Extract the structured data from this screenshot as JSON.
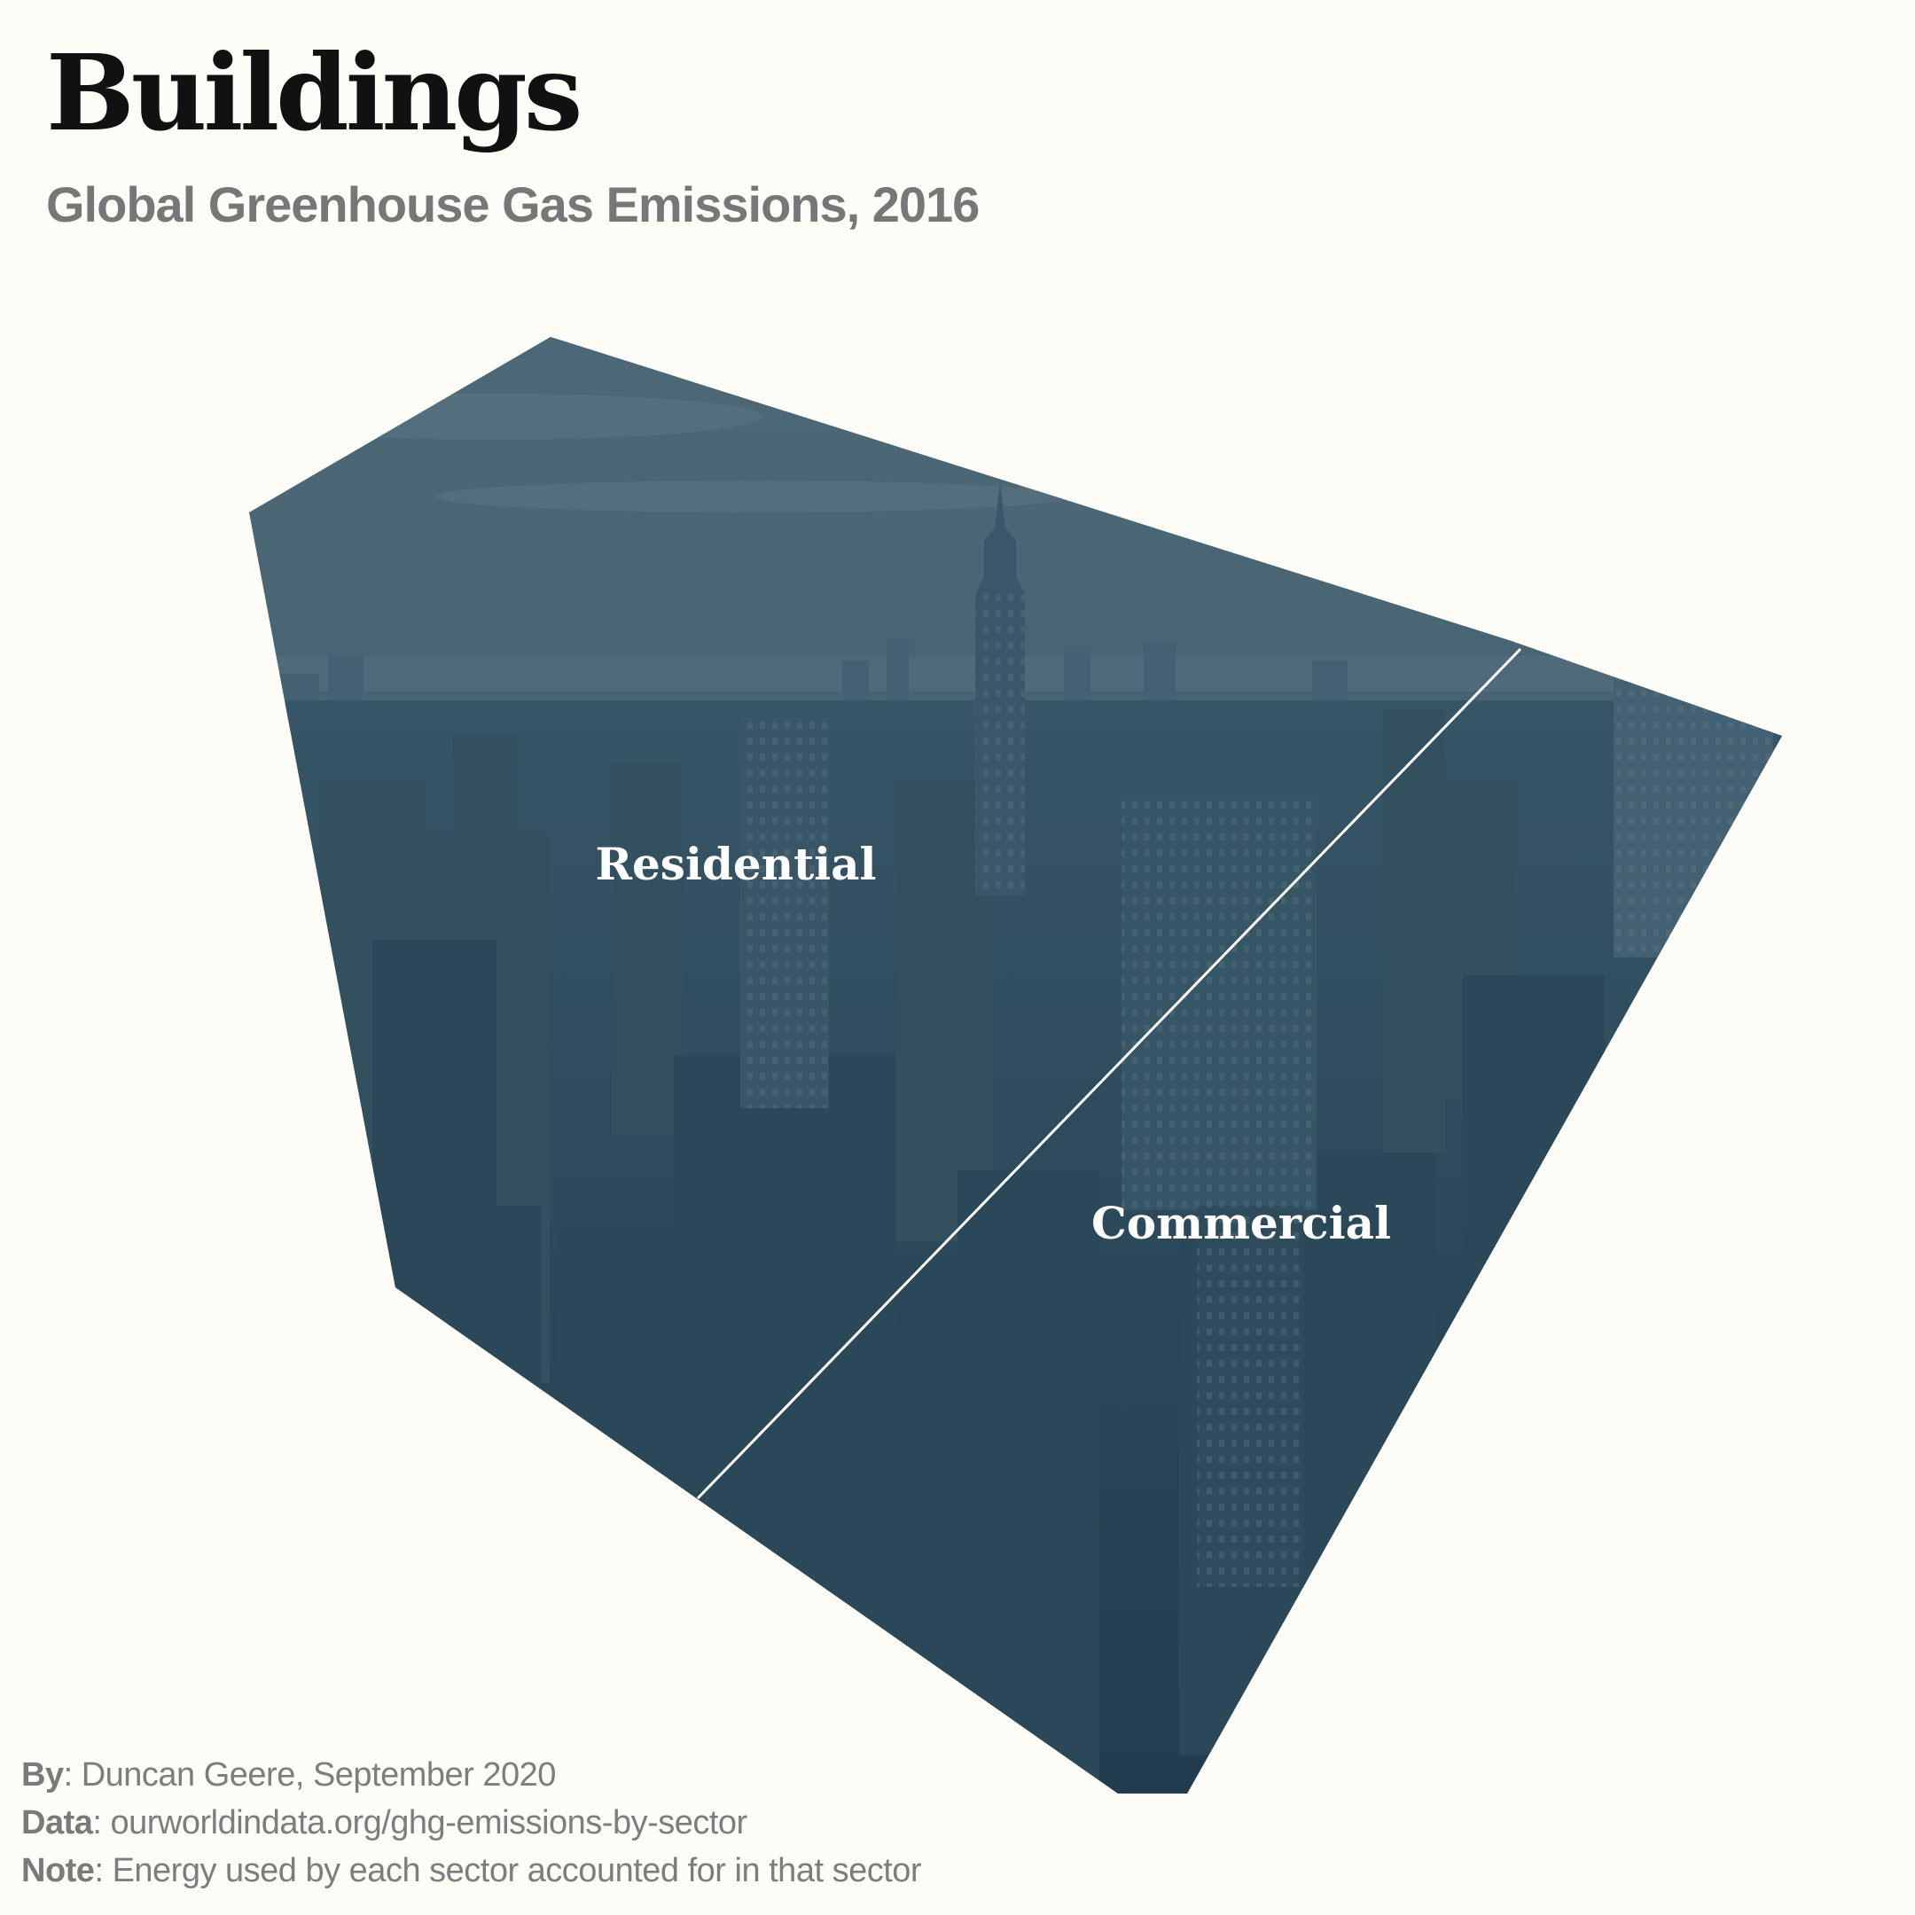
{
  "title": "Buildings",
  "subtitle": "Global Greenhouse Gas Emissions, 2016",
  "diagram": {
    "segments": [
      {
        "label": "Residential",
        "color": "#3f6170"
      },
      {
        "label": "Commercial",
        "color": "#30505f"
      }
    ],
    "divider_color": "#ffffff",
    "background_image": "city-skyline-photo"
  },
  "credits": {
    "by_label": "By",
    "by_value": ": Duncan Geere, September 2020",
    "data_label": "Data",
    "data_value": ": ourworldindata.org/ghg-emissions-by-sector",
    "note_label": "Note",
    "note_value": ": Energy used by each sector accounted for in that sector"
  }
}
